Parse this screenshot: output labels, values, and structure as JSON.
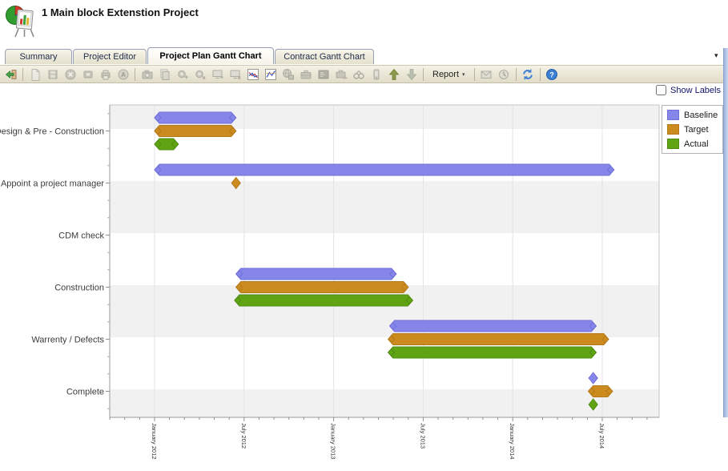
{
  "header": {
    "title": "1 Main block Extenstion Project"
  },
  "tabs": [
    {
      "label": "Summary",
      "active": false
    },
    {
      "label": "Project Editor",
      "active": false
    },
    {
      "label": "Project Plan Gantt Chart",
      "active": true
    },
    {
      "label": "Contract Gantt Chart",
      "active": false
    }
  ],
  "toolbar": {
    "report_label": "Report",
    "icons": [
      {
        "name": "exit-icon",
        "enabled": true
      },
      {
        "name": "separator"
      },
      {
        "name": "new-document-icon",
        "enabled": false
      },
      {
        "name": "save-icon",
        "enabled": false
      },
      {
        "name": "delete-icon",
        "enabled": false
      },
      {
        "name": "record-icon",
        "enabled": false
      },
      {
        "name": "print-icon",
        "enabled": false
      },
      {
        "name": "audit-icon",
        "enabled": false
      },
      {
        "name": "separator"
      },
      {
        "name": "snapshot-icon",
        "enabled": false
      },
      {
        "name": "copy-icon",
        "enabled": false
      },
      {
        "name": "add-gear-icon",
        "enabled": false
      },
      {
        "name": "remove-gear-icon",
        "enabled": false
      },
      {
        "name": "add-monitor-icon",
        "enabled": false
      },
      {
        "name": "remove-monitor-icon",
        "enabled": false
      },
      {
        "name": "trend-chart-icon",
        "enabled": true
      },
      {
        "name": "analysis-chart-icon",
        "enabled": true
      },
      {
        "name": "export-globe-icon",
        "enabled": false
      },
      {
        "name": "briefcase-icon",
        "enabled": false
      },
      {
        "name": "console-icon",
        "enabled": false
      },
      {
        "name": "briefcase-remove-icon",
        "enabled": false
      },
      {
        "name": "search-books-icon",
        "enabled": false
      },
      {
        "name": "search-device-icon",
        "enabled": false
      },
      {
        "name": "move-up-icon",
        "enabled": true
      },
      {
        "name": "move-down-icon",
        "enabled": false
      },
      {
        "name": "separator"
      },
      {
        "name": "report-button",
        "type": "button",
        "enabled": true
      },
      {
        "name": "separator"
      },
      {
        "name": "send-report-icon",
        "enabled": false
      },
      {
        "name": "history-icon",
        "enabled": false
      },
      {
        "name": "separator"
      },
      {
        "name": "refresh-icon",
        "enabled": true
      },
      {
        "name": "separator"
      },
      {
        "name": "help-icon",
        "enabled": true
      }
    ]
  },
  "controls": {
    "show_labels_label": "Show Labels",
    "show_labels_checked": false,
    "tab_overflow_icon": "tab-list-dropdown"
  },
  "chart_data": {
    "type": "gantt",
    "title": "",
    "categories": [
      "Design & Pre - Construction",
      "Appoint a project manager",
      "CDM check",
      "Construction",
      "Warrenty / Defects",
      "Complete"
    ],
    "series": [
      {
        "name": "Baseline",
        "color": "#8585ea"
      },
      {
        "name": "Target",
        "color": "#cc8b1e"
      },
      {
        "name": "Actual",
        "color": "#60a414"
      }
    ],
    "legend_position": "top-right",
    "row_bands": true,
    "x_axis": {
      "tick_labels": [
        "January 2012",
        "July 2012",
        "January 2013",
        "July 2013",
        "January 2014",
        "July 2014"
      ],
      "tick_interval_months": 6,
      "minor_tick_months": 1,
      "range_start": "2011-10-01",
      "range_end": "2014-11-01"
    },
    "bars": [
      {
        "category": "Design & Pre - Construction",
        "series": "Baseline",
        "start": "2012-01-01",
        "end": "2012-06-15"
      },
      {
        "category": "Design & Pre - Construction",
        "series": "Target",
        "start": "2012-01-01",
        "end": "2012-06-15"
      },
      {
        "category": "Design & Pre - Construction",
        "series": "Actual",
        "start": "2012-01-01",
        "end": "2012-02-19"
      },
      {
        "category": "Appoint a project manager",
        "series": "Baseline",
        "start": "2012-01-01",
        "end": "2014-07-25"
      },
      {
        "category": "Appoint a project manager",
        "series": "Target",
        "milestone": true,
        "date": "2012-06-15"
      },
      {
        "category": "Construction",
        "series": "Baseline",
        "start": "2012-06-15",
        "end": "2013-05-07"
      },
      {
        "category": "Construction",
        "series": "Target",
        "start": "2012-06-15",
        "end": "2013-06-01"
      },
      {
        "category": "Construction",
        "series": "Actual",
        "start": "2012-06-12",
        "end": "2013-06-10"
      },
      {
        "category": "Warrenty / Defects",
        "series": "Baseline",
        "start": "2013-04-24",
        "end": "2014-06-19"
      },
      {
        "category": "Warrenty / Defects",
        "series": "Target",
        "start": "2013-04-21",
        "end": "2014-07-14"
      },
      {
        "category": "Warrenty / Defects",
        "series": "Actual",
        "start": "2013-04-21",
        "end": "2014-06-19"
      },
      {
        "category": "Complete",
        "series": "Baseline",
        "milestone": true,
        "date": "2014-06-13"
      },
      {
        "category": "Complete",
        "series": "Target",
        "start": "2014-06-03",
        "end": "2014-07-22"
      },
      {
        "category": "Complete",
        "series": "Actual",
        "milestone": true,
        "date": "2014-06-13"
      }
    ]
  }
}
